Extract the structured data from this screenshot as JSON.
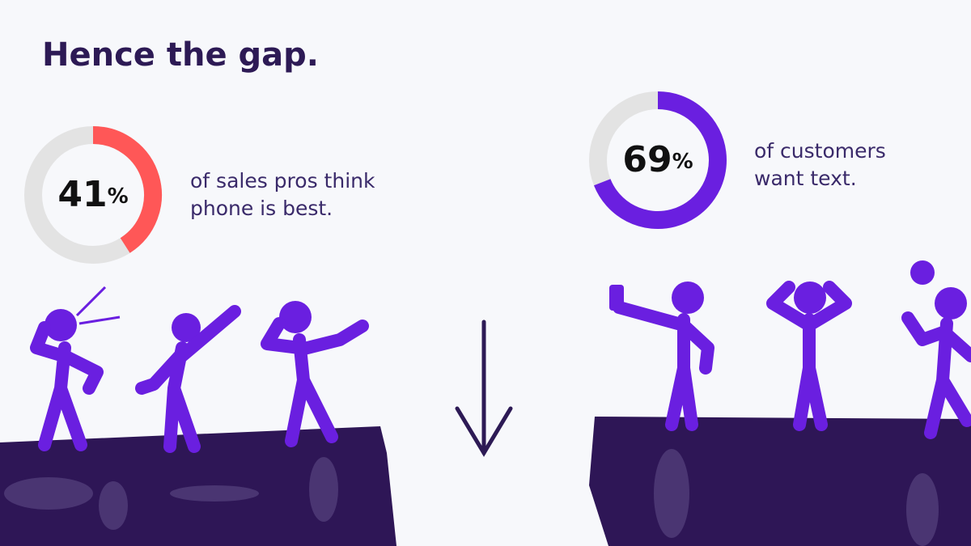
{
  "title": "Hence the gap.",
  "stats": [
    {
      "value": 41,
      "unit": "%",
      "lines": [
        "of sales pros think",
        "phone is best."
      ],
      "color": "#ff5757"
    },
    {
      "value": 69,
      "unit": "%",
      "lines": [
        "of customers",
        "want text."
      ],
      "color": "#6a1fe0"
    }
  ]
}
